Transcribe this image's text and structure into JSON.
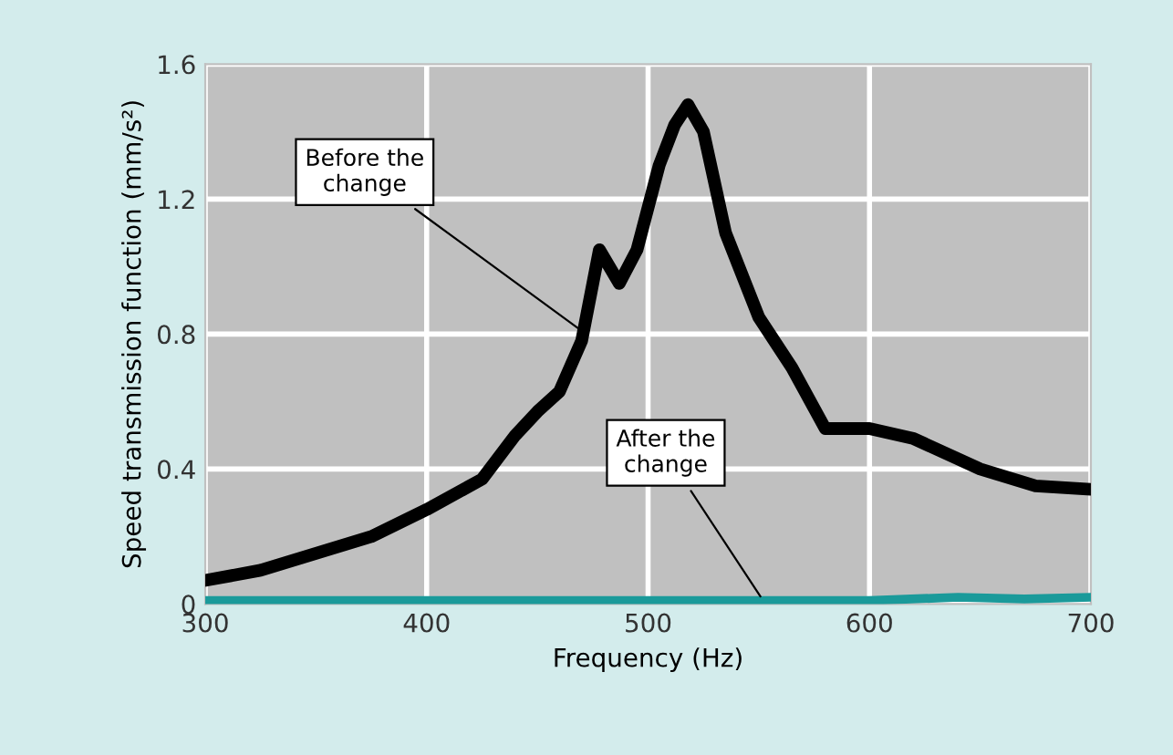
{
  "chart_data": {
    "type": "line",
    "xlabel": "Frequency (Hz)",
    "ylabel": "Speed transmission function (mm/s²)",
    "xlim": [
      300,
      700
    ],
    "xticks": [
      300,
      400,
      500,
      600,
      700
    ],
    "ylim": [
      0,
      1.6
    ],
    "yticks": [
      {
        "value": 0,
        "label": "0"
      },
      0.4,
      0.8,
      1.2,
      1.6
    ],
    "grid": true,
    "legend": false,
    "series": [
      {
        "color": "#000000",
        "x": [
          300,
          325,
          350,
          375,
          400,
          425,
          440,
          450,
          460,
          470,
          478,
          487,
          495,
          505,
          512,
          518,
          525,
          535,
          550,
          565,
          580,
          600,
          620,
          650,
          675,
          700
        ],
        "values": [
          0.07,
          0.1,
          0.15,
          0.2,
          0.28,
          0.37,
          0.5,
          0.57,
          0.63,
          0.78,
          1.05,
          0.95,
          1.05,
          1.3,
          1.42,
          1.48,
          1.4,
          1.1,
          0.85,
          0.7,
          0.52,
          0.52,
          0.49,
          0.4,
          0.35,
          0.34
        ]
      },
      {
        "color": "#1a9a9a",
        "x": [
          300,
          400,
          500,
          600,
          640,
          670,
          700
        ],
        "values": [
          0.01,
          0.01,
          0.01,
          0.01,
          0.02,
          0.015,
          0.02
        ]
      }
    ],
    "annotations": [
      {
        "text": "Before the\nchange",
        "x": 472,
        "y": 0.8
      },
      {
        "text": "After the\nchange",
        "x": 552,
        "y": 0.01
      }
    ]
  }
}
